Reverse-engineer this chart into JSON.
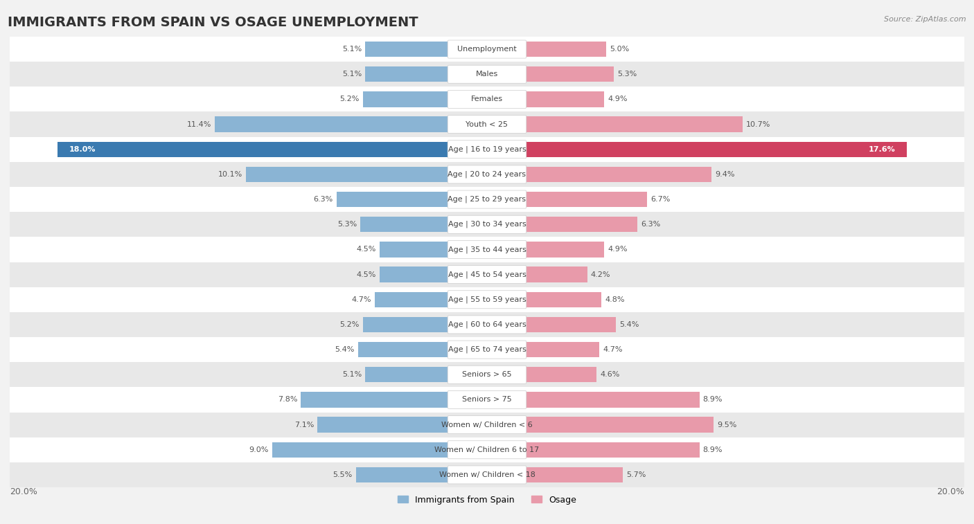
{
  "title": "IMMIGRANTS FROM SPAIN VS OSAGE UNEMPLOYMENT",
  "source": "Source: ZipAtlas.com",
  "categories": [
    "Unemployment",
    "Males",
    "Females",
    "Youth < 25",
    "Age | 16 to 19 years",
    "Age | 20 to 24 years",
    "Age | 25 to 29 years",
    "Age | 30 to 34 years",
    "Age | 35 to 44 years",
    "Age | 45 to 54 years",
    "Age | 55 to 59 years",
    "Age | 60 to 64 years",
    "Age | 65 to 74 years",
    "Seniors > 65",
    "Seniors > 75",
    "Women w/ Children < 6",
    "Women w/ Children 6 to 17",
    "Women w/ Children < 18"
  ],
  "spain_values": [
    5.1,
    5.1,
    5.2,
    11.4,
    18.0,
    10.1,
    6.3,
    5.3,
    4.5,
    4.5,
    4.7,
    5.2,
    5.4,
    5.1,
    7.8,
    7.1,
    9.0,
    5.5
  ],
  "osage_values": [
    5.0,
    5.3,
    4.9,
    10.7,
    17.6,
    9.4,
    6.7,
    6.3,
    4.9,
    4.2,
    4.8,
    5.4,
    4.7,
    4.6,
    8.9,
    9.5,
    8.9,
    5.7
  ],
  "spain_color": "#8ab4d4",
  "osage_color": "#e89aaa",
  "spain_highlight_color": "#3a7ab0",
  "osage_highlight_color": "#d04060",
  "axis_max": 20.0,
  "background_color": "#f2f2f2",
  "row_color_even": "#ffffff",
  "row_color_odd": "#e8e8e8",
  "title_fontsize": 14,
  "label_fontsize": 8,
  "value_fontsize": 8,
  "bar_height": 0.62,
  "legend_spain": "Immigrants from Spain",
  "legend_osage": "Osage"
}
